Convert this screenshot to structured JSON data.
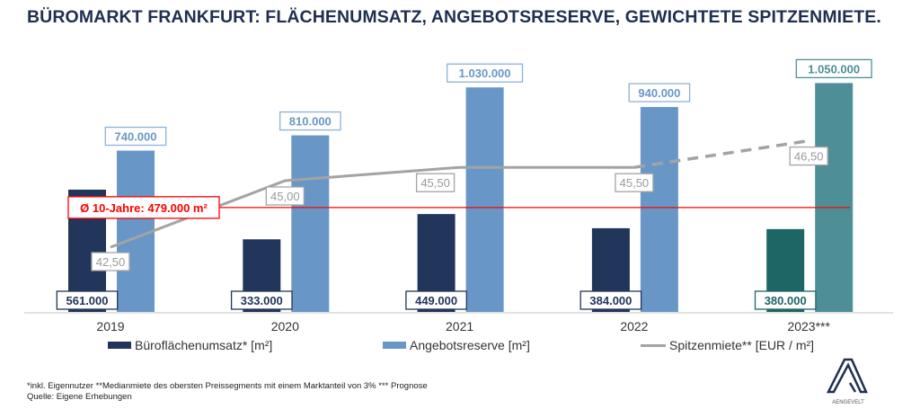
{
  "title": "BÜROMARKT FRANKFURT: FLÄCHENUMSATZ, ANGEBOTSRESERVE, GEWICHTETE SPITZENMIETE.",
  "chart_data": {
    "type": "bar",
    "categories": [
      "2019",
      "2020",
      "2021",
      "2022",
      "2023***"
    ],
    "series": [
      {
        "name": "Büroflächenumsatz* [m²]",
        "kind": "bar",
        "values": [
          561000,
          333000,
          449000,
          384000,
          380000
        ],
        "labels": [
          "561.000",
          "333.000",
          "449.000",
          "384.000",
          "380.000"
        ],
        "color": "#22355a",
        "forecast_color": "#1e6566"
      },
      {
        "name": "Angebotsreserve [m²]",
        "kind": "bar",
        "values": [
          740000,
          810000,
          1030000,
          940000,
          1050000
        ],
        "labels": [
          "740.000",
          "810.000",
          "1.030.000",
          "940.000",
          "1.050.000"
        ],
        "color": "#6897c7",
        "forecast_color": "#4e8f97"
      },
      {
        "name": "Spitzenmiete** [EUR / m²]",
        "kind": "line",
        "values": [
          42.5,
          45.0,
          45.5,
          45.5,
          46.5
        ],
        "labels": [
          "42,50",
          "45,00",
          "45,50",
          "45,50",
          "46,50"
        ],
        "color": "#a3a3a3",
        "dashed_last_segment": true
      }
    ],
    "reference_line": {
      "value": 479000,
      "label": "Ø 10-Jahre: 479.000 m²",
      "color": "#ff0000"
    },
    "legend_position": "bottom",
    "grid": false
  },
  "footnote": {
    "line1": "*inkl. Eigennutzer **Medianmiete des obersten Preissegments mit einem Marktanteil von 3% *** Prognose",
    "line2": "Quelle: Eigene Erhebungen"
  },
  "logo_text": "AENGEVELT"
}
